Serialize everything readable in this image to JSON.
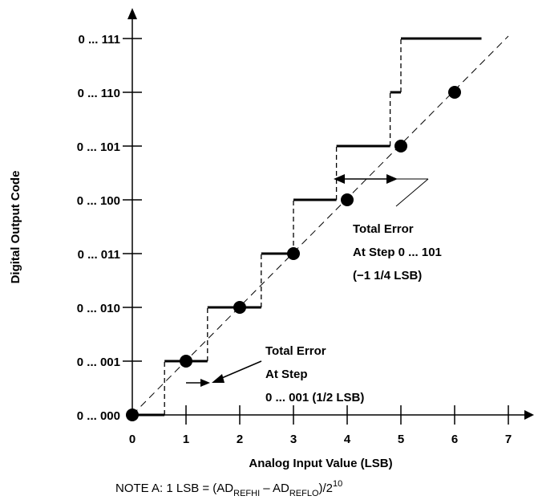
{
  "x_axis": {
    "title": "Analog Input Value (LSB)",
    "ticks": [
      "0",
      "1",
      "2",
      "3",
      "4",
      "5",
      "6",
      "7"
    ]
  },
  "y_axis": {
    "title": "Digital Output Code",
    "ticks": [
      "0 ... 000",
      "0 ... 001",
      "0 ... 010",
      "0 ... 011",
      "0 ... 100",
      "0 ... 101",
      "0 ... 110",
      "0 ... 111"
    ]
  },
  "annotations": {
    "step101": {
      "line1": "Total Error",
      "line2": "At Step 0 ... 101",
      "line3": "(−1 1/4 LSB)"
    },
    "step001": {
      "line1": "Total Error",
      "line2": "At Step",
      "line3": "0 ... 001 (1/2 LSB)"
    }
  },
  "note": {
    "prefix": "NOTE A:  1 LSB = (AD",
    "sub1": "REFHI",
    "mid": " – AD",
    "sub2": "REFLO",
    "end": ")/2",
    "sup": "10"
  },
  "transfer": {
    "ideal_points": [
      0,
      1,
      2,
      3,
      4,
      5,
      6
    ],
    "transitions": [
      0.6,
      1.4,
      2.4,
      3.0,
      3.8,
      4.8,
      5.0
    ],
    "step_right_end": 6.5
  }
}
